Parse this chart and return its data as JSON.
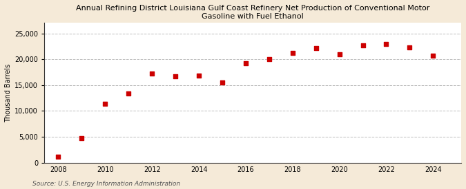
{
  "title": "Annual Refining District Louisiana Gulf Coast Refinery Net Production of Conventional Motor\nGasoline with Fuel Ethanol",
  "ylabel": "Thousand Barrels",
  "source": "Source: U.S. Energy Information Administration",
  "background_color": "#f5ead8",
  "plot_background_color": "#ffffff",
  "marker_color": "#cc0000",
  "marker": "s",
  "marker_size": 4,
  "grid_color": "#bbbbbb",
  "years": [
    2008,
    2009,
    2010,
    2011,
    2012,
    2013,
    2014,
    2015,
    2016,
    2017,
    2018,
    2019,
    2020,
    2021,
    2022,
    2023,
    2024
  ],
  "values": [
    1100,
    4700,
    11400,
    13400,
    17200,
    16700,
    16800,
    15500,
    19200,
    20000,
    21200,
    22100,
    20900,
    22700,
    23000,
    22300,
    20700
  ],
  "ylim": [
    0,
    27000
  ],
  "yticks": [
    0,
    5000,
    10000,
    15000,
    20000,
    25000
  ],
  "xlim": [
    2007.4,
    2025.2
  ],
  "xticks": [
    2008,
    2010,
    2012,
    2014,
    2016,
    2018,
    2020,
    2022,
    2024
  ]
}
